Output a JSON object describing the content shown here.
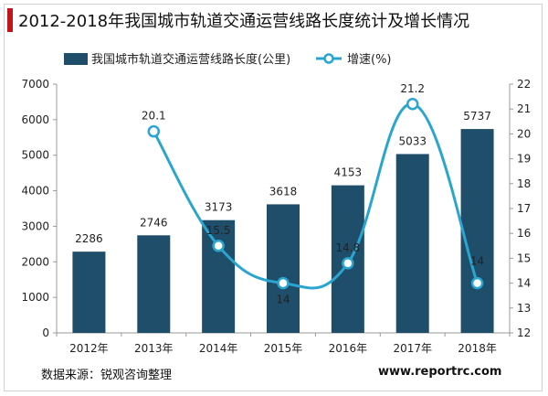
{
  "title": "2012-2018年我国城市轨道交通运营线路长度统计及增长情况",
  "colors": {
    "accent": "#c0161b",
    "bar": "#1f4e6b",
    "line": "#2aa5cf",
    "text": "#222222"
  },
  "legend": {
    "bar_label": "我国城市轨道交通运营线路长度(公里)",
    "line_label": "增速(%)"
  },
  "chart_data": {
    "type": "bar",
    "categories": [
      "2012年",
      "2013年",
      "2014年",
      "2015年",
      "2016年",
      "2017年",
      "2018年"
    ],
    "series": [
      {
        "name": "我国城市轨道交通运营线路长度(公里)",
        "type": "bar",
        "axis": "left",
        "values": [
          2286,
          2746,
          3173,
          3618,
          4153,
          5033,
          5737
        ],
        "labels": [
          "2286",
          "2746",
          "3173",
          "3618",
          "4153",
          "5033",
          "5737"
        ]
      },
      {
        "name": "增速(%)",
        "type": "line",
        "smooth": true,
        "axis": "right",
        "values": [
          null,
          20.1,
          15.5,
          14,
          14.8,
          21.2,
          14
        ],
        "labels": [
          "",
          "20.1",
          "15.5",
          "14",
          "14.8",
          "21.2",
          "14"
        ]
      }
    ],
    "y_left": {
      "min": 0,
      "max": 7000,
      "ticks": [
        "0",
        "1000",
        "2000",
        "3000",
        "4000",
        "5000",
        "6000",
        "7000"
      ]
    },
    "y_right": {
      "min": 12,
      "max": 22,
      "ticks": [
        "12",
        "13",
        "14",
        "15",
        "16",
        "17",
        "18",
        "19",
        "20",
        "21",
        "22"
      ]
    },
    "legend_position": "top",
    "grid": false
  },
  "footer": {
    "source": "数据来源：锐观咨询整理",
    "site": "www.reportrc.com"
  }
}
